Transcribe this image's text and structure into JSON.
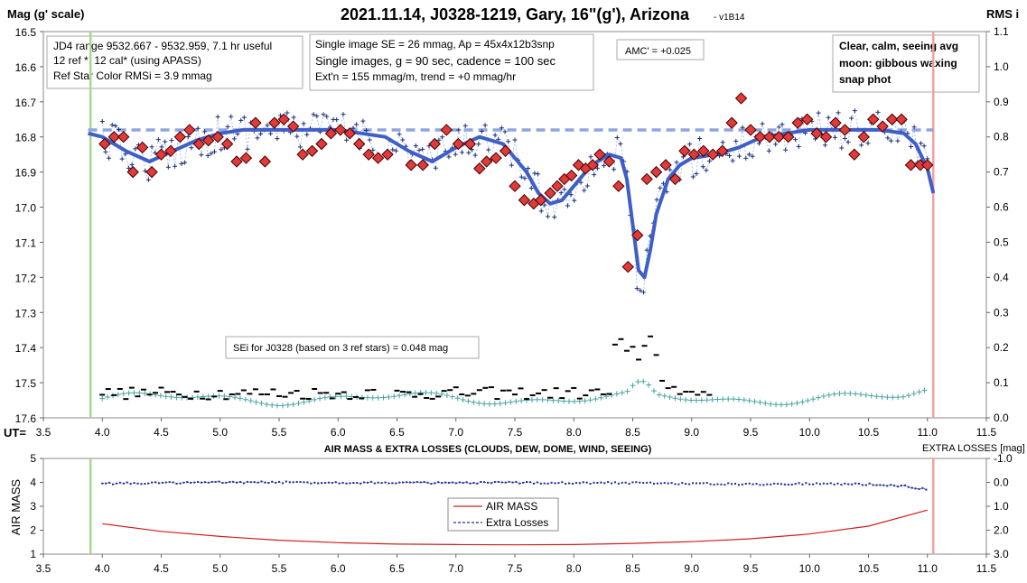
{
  "header": {
    "title": "2021.11.14, J0328-1219, Gary, 16\"(g'), Arizona",
    "version": "- v1B14",
    "left_axis_label": "Mag (g' scale)",
    "right_axis_label": "RMS i"
  },
  "info_boxes": {
    "jd": [
      "JD4 range 9532.667 - 9532.959, 7.1 hr useful",
      "12 ref *, 12 cal* (using APASS)",
      "Ref Star Color RMSi = 3.9 mmag"
    ],
    "single": [
      "Single image SE = 26 mmag, Ap = 45x4x12b3snp",
      "Single images, g = 90 sec, cadence = 100 sec",
      "Ext'n = 155 mmag/m, trend = +0 mmag/hr"
    ],
    "amc": "AMC' = +0.025",
    "weather": [
      "Clear, calm, seeing avg",
      "moon: gibbous waxing",
      "snap phot"
    ],
    "sei": "SEi for J0328 (based on 3 ref stars) = 0.048 mag"
  },
  "colors": {
    "fit_line": "#3f5fc8",
    "reference_dashed": "#8ea6e0",
    "binned_fill": "#e03a3a",
    "single_plus": "#1c2f7a",
    "rms_teal": "#4aa3a3",
    "airmass_red": "#d02020",
    "extra_losses_blue": "#1c2f9a",
    "start_line": "#a8d890",
    "end_line": "#f4a0a0"
  },
  "chart_data": [
    {
      "type": "scatter",
      "x_axis_label": "UT=",
      "xlim": [
        3.5,
        11.5
      ],
      "ylim": [
        16.5,
        17.6
      ],
      "y_reversed": true,
      "y2lim": [
        0.0,
        1.1
      ],
      "x_ticks": [
        "3.5",
        "4.0",
        "4.5",
        "5.0",
        "5.5",
        "6.0",
        "6.5",
        "7.0",
        "7.5",
        "8.0",
        "8.5",
        "9.0",
        "9.5",
        "10.0",
        "10.5",
        "11.0",
        "11.5"
      ],
      "y_ticks": [
        "16.5",
        "16.6",
        "16.7",
        "16.8",
        "16.9",
        "17.0",
        "17.1",
        "17.2",
        "17.3",
        "17.4",
        "17.5",
        "17.6"
      ],
      "y2_ticks": [
        "1.1",
        "1.0",
        "0.9",
        "0.8",
        "0.7",
        "0.6",
        "0.5",
        "0.4",
        "0.3",
        "0.2",
        "0.1",
        "0.0"
      ],
      "start_ut": 3.9,
      "end_ut": 11.05,
      "reference_mag": 16.78,
      "fit_curve": {
        "x": [
          3.88,
          4.0,
          4.2,
          4.4,
          4.6,
          4.8,
          5.0,
          5.2,
          5.4,
          5.6,
          5.8,
          6.0,
          6.2,
          6.4,
          6.6,
          6.8,
          7.0,
          7.2,
          7.4,
          7.6,
          7.7,
          7.8,
          7.9,
          8.0,
          8.1,
          8.2,
          8.3,
          8.4,
          8.45,
          8.5,
          8.55,
          8.6,
          8.65,
          8.7,
          8.8,
          8.9,
          9.0,
          9.2,
          9.4,
          9.6,
          9.8,
          10.0,
          10.2,
          10.4,
          10.6,
          10.8,
          10.9,
          11.0,
          11.05
        ],
        "y": [
          16.79,
          16.8,
          16.84,
          16.87,
          16.84,
          16.81,
          16.79,
          16.78,
          16.78,
          16.78,
          16.78,
          16.78,
          16.79,
          16.8,
          16.84,
          16.87,
          16.83,
          16.8,
          16.82,
          16.9,
          16.96,
          16.99,
          16.98,
          16.94,
          16.9,
          16.87,
          16.85,
          16.86,
          16.92,
          17.05,
          17.18,
          17.2,
          17.12,
          17.02,
          16.92,
          16.88,
          16.86,
          16.85,
          16.83,
          16.8,
          16.79,
          16.78,
          16.78,
          16.78,
          16.78,
          16.79,
          16.82,
          16.89,
          16.96
        ]
      },
      "binned": {
        "x": [
          4.02,
          4.1,
          4.18,
          4.26,
          4.34,
          4.42,
          4.5,
          4.58,
          4.66,
          4.74,
          4.82,
          4.9,
          4.98,
          5.06,
          5.14,
          5.22,
          5.3,
          5.38,
          5.46,
          5.54,
          5.62,
          5.7,
          5.78,
          5.86,
          5.94,
          6.02,
          6.1,
          6.18,
          6.26,
          6.34,
          6.42,
          6.62,
          6.72,
          6.82,
          6.92,
          7.02,
          7.12,
          7.2,
          7.26,
          7.34,
          7.42,
          7.5,
          7.58,
          7.66,
          7.72,
          7.8,
          7.86,
          7.92,
          7.98,
          8.04,
          8.1,
          8.16,
          8.22,
          8.3,
          8.38,
          8.46,
          8.54,
          8.62,
          8.7,
          8.78,
          8.86,
          8.94,
          9.02,
          9.1,
          9.18,
          9.26,
          9.34,
          9.42,
          9.5,
          9.58,
          9.66,
          9.74,
          9.82,
          9.9,
          9.98,
          10.06,
          10.14,
          10.22,
          10.3,
          10.38,
          10.46,
          10.54,
          10.62,
          10.7,
          10.78,
          10.86,
          10.94,
          11.0
        ],
        "y": [
          16.82,
          16.8,
          16.8,
          16.9,
          16.83,
          16.9,
          16.85,
          16.84,
          16.8,
          16.78,
          16.82,
          16.81,
          16.8,
          16.82,
          16.87,
          16.86,
          16.76,
          16.87,
          16.76,
          16.75,
          16.77,
          16.85,
          16.84,
          16.82,
          16.79,
          16.78,
          16.79,
          16.82,
          16.85,
          16.86,
          16.85,
          16.88,
          16.88,
          16.82,
          16.78,
          16.82,
          16.82,
          16.89,
          16.87,
          16.86,
          16.84,
          16.94,
          16.98,
          16.99,
          16.98,
          16.96,
          16.94,
          16.92,
          16.91,
          16.88,
          16.89,
          16.88,
          16.85,
          16.87,
          16.94,
          17.17,
          17.08,
          16.92,
          16.9,
          16.88,
          16.92,
          16.84,
          16.85,
          16.84,
          16.85,
          16.84,
          16.76,
          16.69,
          16.78,
          16.8,
          16.8,
          16.8,
          16.8,
          16.76,
          16.75,
          16.79,
          16.8,
          16.76,
          16.78,
          16.85,
          16.8,
          16.75,
          16.77,
          16.75,
          16.75,
          16.88,
          16.88,
          16.88
        ]
      },
      "singles_note": "individual g-band images, 'plus' markers",
      "rms_series_note": "teal plus markers on RMS axis, black dashes = SEi of ref stars"
    },
    {
      "type": "line",
      "title": "AIR MASS & EXTRA LOSSES (CLOUDS, DEW, DOME, WIND, SEEING)",
      "right_axis_label": "EXTRA LOSSES [mag]",
      "ylabel": "AIR MASS",
      "xlim": [
        3.5,
        11.5
      ],
      "ylim": [
        1,
        5
      ],
      "y2lim": [
        3.0,
        -1.0
      ],
      "x_ticks": [
        "3.5",
        "4.0",
        "4.5",
        "5.0",
        "5.5",
        "6.0",
        "6.5",
        "7.0",
        "7.5",
        "8.0",
        "8.5",
        "9.0",
        "9.5",
        "10.0",
        "10.5",
        "11.0",
        "11.5"
      ],
      "y_ticks": [
        "1",
        "2",
        "3",
        "4",
        "5"
      ],
      "y2_ticks": [
        "-1.0",
        "0.0",
        "1.0",
        "2.0",
        "3.0"
      ],
      "legend": [
        "AIR MASS",
        "Extra Losses"
      ],
      "legend_position": "bottom-center",
      "series": [
        {
          "name": "AIR MASS",
          "x": [
            4.0,
            4.5,
            5.0,
            5.5,
            6.0,
            6.5,
            7.0,
            7.5,
            8.0,
            8.5,
            9.0,
            9.5,
            10.0,
            10.5,
            11.0
          ],
          "values": [
            2.27,
            1.95,
            1.74,
            1.58,
            1.48,
            1.42,
            1.4,
            1.39,
            1.4,
            1.45,
            1.52,
            1.64,
            1.84,
            2.17,
            2.84
          ]
        },
        {
          "name": "Extra Losses",
          "x": [
            4.0,
            4.5,
            5.0,
            5.5,
            6.0,
            6.5,
            7.0,
            7.5,
            8.0,
            8.5,
            9.0,
            9.5,
            10.0,
            10.5,
            10.8,
            11.0
          ],
          "values": [
            0.05,
            0.02,
            0.0,
            0.0,
            0.01,
            0.01,
            0.03,
            0.01,
            0.02,
            0.02,
            0.05,
            0.08,
            0.05,
            0.08,
            0.15,
            0.3
          ]
        }
      ]
    }
  ]
}
